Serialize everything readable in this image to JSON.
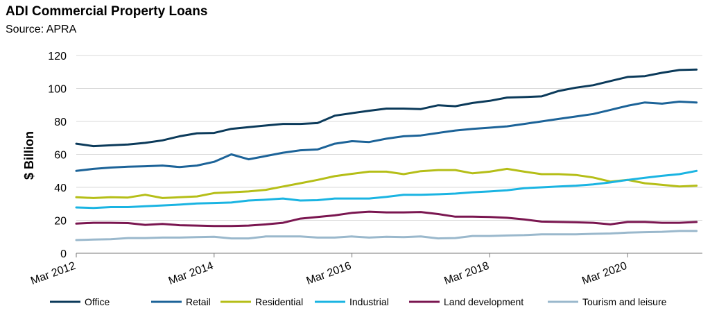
{
  "chart_data": {
    "type": "line",
    "title": "ADI Commercial Property Loans",
    "subtitle": "Source: APRA",
    "xlabel": "",
    "ylabel": "$ Billion",
    "ylim": [
      0,
      120
    ],
    "yticks": [
      0,
      20,
      40,
      60,
      80,
      100,
      120
    ],
    "grid": true,
    "legend_position": "bottom",
    "x_tick_labels": [
      "Mar 2012",
      "Mar 2014",
      "Mar 2016",
      "Mar 2018",
      "Mar 2020"
    ],
    "x_start": "Mar 2012",
    "frequency": "quarterly",
    "series": [
      {
        "name": "Office",
        "color": "#0b3a5a",
        "values": [
          66.5,
          65,
          65.5,
          66,
          67,
          68.5,
          71,
          72.8,
          73,
          75.5,
          76.5,
          77.5,
          78.5,
          78.5,
          79,
          83.5,
          85,
          86.5,
          87.8,
          87.8,
          87.5,
          89.8,
          89.2,
          91.2,
          92.5,
          94.5,
          94.8,
          95.2,
          98.5,
          100.5,
          102,
          104.5,
          107,
          107.5,
          109.5,
          111.2,
          111.5
        ]
      },
      {
        "name": "Retail",
        "color": "#1c6398",
        "values": [
          50,
          51.2,
          52,
          52.5,
          52.8,
          53.2,
          52.3,
          53.2,
          55.5,
          60,
          57,
          59,
          61,
          62.5,
          63,
          66.5,
          68,
          67.5,
          69.5,
          71,
          71.5,
          73,
          74.5,
          75.5,
          76.2,
          77,
          78.5,
          80,
          81.5,
          83,
          84.5,
          87,
          89.5,
          91.5,
          90.8,
          92,
          91.5
        ]
      },
      {
        "name": "Residential",
        "color": "#b5be17",
        "values": [
          34,
          33.5,
          34,
          33.8,
          35.5,
          33.5,
          34,
          34.5,
          36.5,
          37,
          37.5,
          38.5,
          40.5,
          42.5,
          44.5,
          46.8,
          48.2,
          49.5,
          49.5,
          48,
          49.8,
          50.5,
          50.5,
          48.5,
          49.5,
          51.2,
          49.5,
          48,
          48,
          47.5,
          46,
          43.5,
          44.5,
          42.5,
          41.5,
          40.5,
          41
        ]
      },
      {
        "name": "Industrial",
        "color": "#1ab4e2",
        "values": [
          27.8,
          27.5,
          28,
          28,
          28.5,
          29,
          29.5,
          30.2,
          30.5,
          30.8,
          32,
          32.5,
          33.2,
          32,
          32.2,
          33.2,
          33.2,
          33.2,
          34.2,
          35.5,
          35.5,
          35.8,
          36.2,
          37,
          37.5,
          38.2,
          39.5,
          40,
          40.5,
          41,
          41.8,
          43,
          44.5,
          45.8,
          47,
          48,
          50
        ]
      },
      {
        "name": "Land development",
        "color": "#7a1650",
        "values": [
          18,
          18.5,
          18.5,
          18.3,
          17.2,
          17.8,
          17,
          16.8,
          16.5,
          16.5,
          16.8,
          17.5,
          18.5,
          21,
          22,
          23,
          24.5,
          25.2,
          24.8,
          24.8,
          25,
          23.8,
          22.2,
          22.2,
          22,
          21.5,
          20.5,
          19.2,
          19,
          18.8,
          18.5,
          17.5,
          19,
          19,
          18.5,
          18.5,
          19
        ]
      },
      {
        "name": "Tourism and leisure",
        "color": "#9ab8cc",
        "values": [
          8,
          8.3,
          8.5,
          9.2,
          9.2,
          9.5,
          9.5,
          9.8,
          10,
          9,
          9,
          10.2,
          10.2,
          10.2,
          9.5,
          9.5,
          10.2,
          9.5,
          10,
          9.8,
          10.2,
          9,
          9.2,
          10.5,
          10.5,
          10.8,
          11,
          11.5,
          11.5,
          11.5,
          11.8,
          12,
          12.5,
          12.8,
          13,
          13.5,
          13.5
        ]
      }
    ]
  }
}
